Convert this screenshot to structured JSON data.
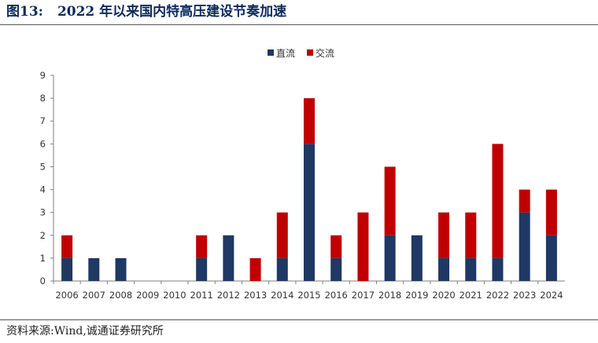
{
  "header": {
    "figure_label": "图13:",
    "title": "2022 年以来国内特高压建设节奏加速"
  },
  "footer": {
    "source": "资料来源:Wind,诚通证券研究所"
  },
  "colors": {
    "dc": "#1f3864",
    "ac": "#c00000",
    "title": "#0b2a5c"
  },
  "chart_data": {
    "type": "bar",
    "stacked": true,
    "categories": [
      "2006",
      "2007",
      "2008",
      "2009",
      "2010",
      "2011",
      "2012",
      "2013",
      "2014",
      "2015",
      "2016",
      "2017",
      "2018",
      "2019",
      "2020",
      "2021",
      "2022",
      "2023",
      "2024"
    ],
    "series": [
      {
        "name": "直流",
        "color": "#1f3864",
        "values": [
          1,
          1,
          1,
          0,
          0,
          1,
          2,
          0,
          1,
          6,
          1,
          0,
          2,
          2,
          1,
          1,
          1,
          3,
          2
        ]
      },
      {
        "name": "交流",
        "color": "#c00000",
        "values": [
          1,
          0,
          0,
          0,
          0,
          1,
          0,
          1,
          2,
          2,
          1,
          3,
          3,
          0,
          2,
          2,
          5,
          1,
          2
        ]
      }
    ],
    "ylim": [
      0,
      9
    ],
    "yticks": [
      0,
      1,
      2,
      3,
      4,
      5,
      6,
      7,
      8,
      9
    ],
    "grid": false,
    "legend": "top-center"
  }
}
